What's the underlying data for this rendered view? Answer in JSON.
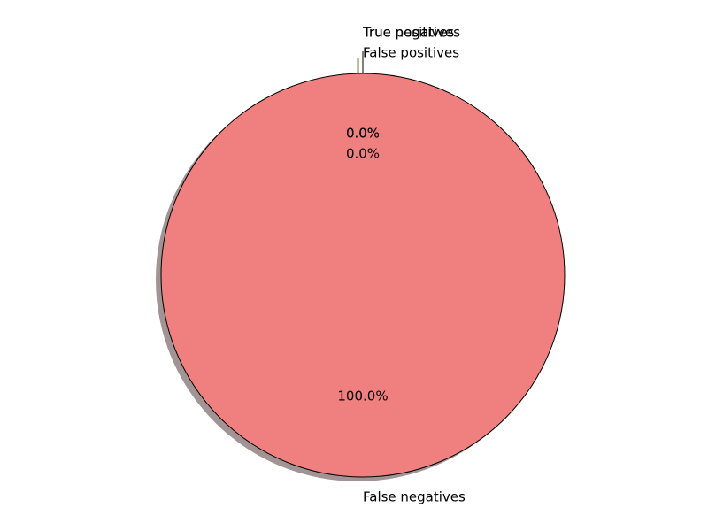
{
  "chart_data": {
    "type": "pie",
    "title": "",
    "slices": [
      {
        "label": "True positives",
        "value": 0.0,
        "pct_label": "0.0%",
        "color": "#ffd700"
      },
      {
        "label": "True negatives",
        "value": 0.0,
        "pct_label": "0.0%",
        "color": "#9acd32"
      },
      {
        "label": "False positives",
        "value": 0.0,
        "pct_label": "0.0%",
        "color": "#87ceeb"
      },
      {
        "label": "False negatives",
        "value": 100.0,
        "pct_label": "100.0%",
        "color": "#f08080"
      }
    ],
    "shadow": true,
    "start_angle_deg": 90,
    "legend": false
  }
}
